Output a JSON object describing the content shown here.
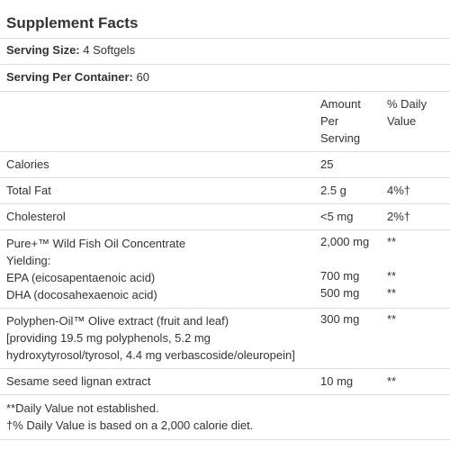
{
  "title": "Supplement Facts",
  "serving_size": {
    "label": "Serving Size:",
    "value": " 4 Softgels"
  },
  "servings_per_container": {
    "label": "Serving Per Container:",
    "value": " 60"
  },
  "header": {
    "amount_line1": "Amount",
    "amount_line2": "Per",
    "amount_line3": "Serving",
    "dv_line1": "% Daily",
    "dv_line2": "Value"
  },
  "rows": [
    {
      "name": "Calories",
      "amount": "25",
      "dv": ""
    },
    {
      "name": "Total Fat",
      "amount": "2.5 g",
      "dv": "4%†"
    },
    {
      "name": "Cholesterol",
      "amount": "<5 mg",
      "dv": "2%†"
    }
  ],
  "fish_oil": {
    "name": "Pure+™ Wild Fish Oil Concentrate",
    "amount": "2,000 mg",
    "dv": "**",
    "yielding": "Yielding:",
    "epa": {
      "name": "EPA (eicosapentaenoic acid)",
      "amount": "700 mg",
      "dv": "**"
    },
    "dha": {
      "name": "DHA (docosahexaenoic acid)",
      "amount": "500 mg",
      "dv": "**"
    }
  },
  "polyphen": {
    "line1": "Polyphen-Oil™ Olive extract (fruit and leaf)",
    "line2": "[providing 19.5 mg polyphenols, 5.2 mg",
    "line3": "hydroxytyrosol/tyrosol, 4.4 mg verbascoside/oleuropein]",
    "amount": "300 mg",
    "dv": "**"
  },
  "sesame": {
    "name": "Sesame seed lignan extract",
    "amount": "10 mg",
    "dv": "**"
  },
  "footnotes": {
    "line1": "**Daily Value not established.",
    "line2": "†% Daily Value is based on a 2,000 calorie diet."
  }
}
